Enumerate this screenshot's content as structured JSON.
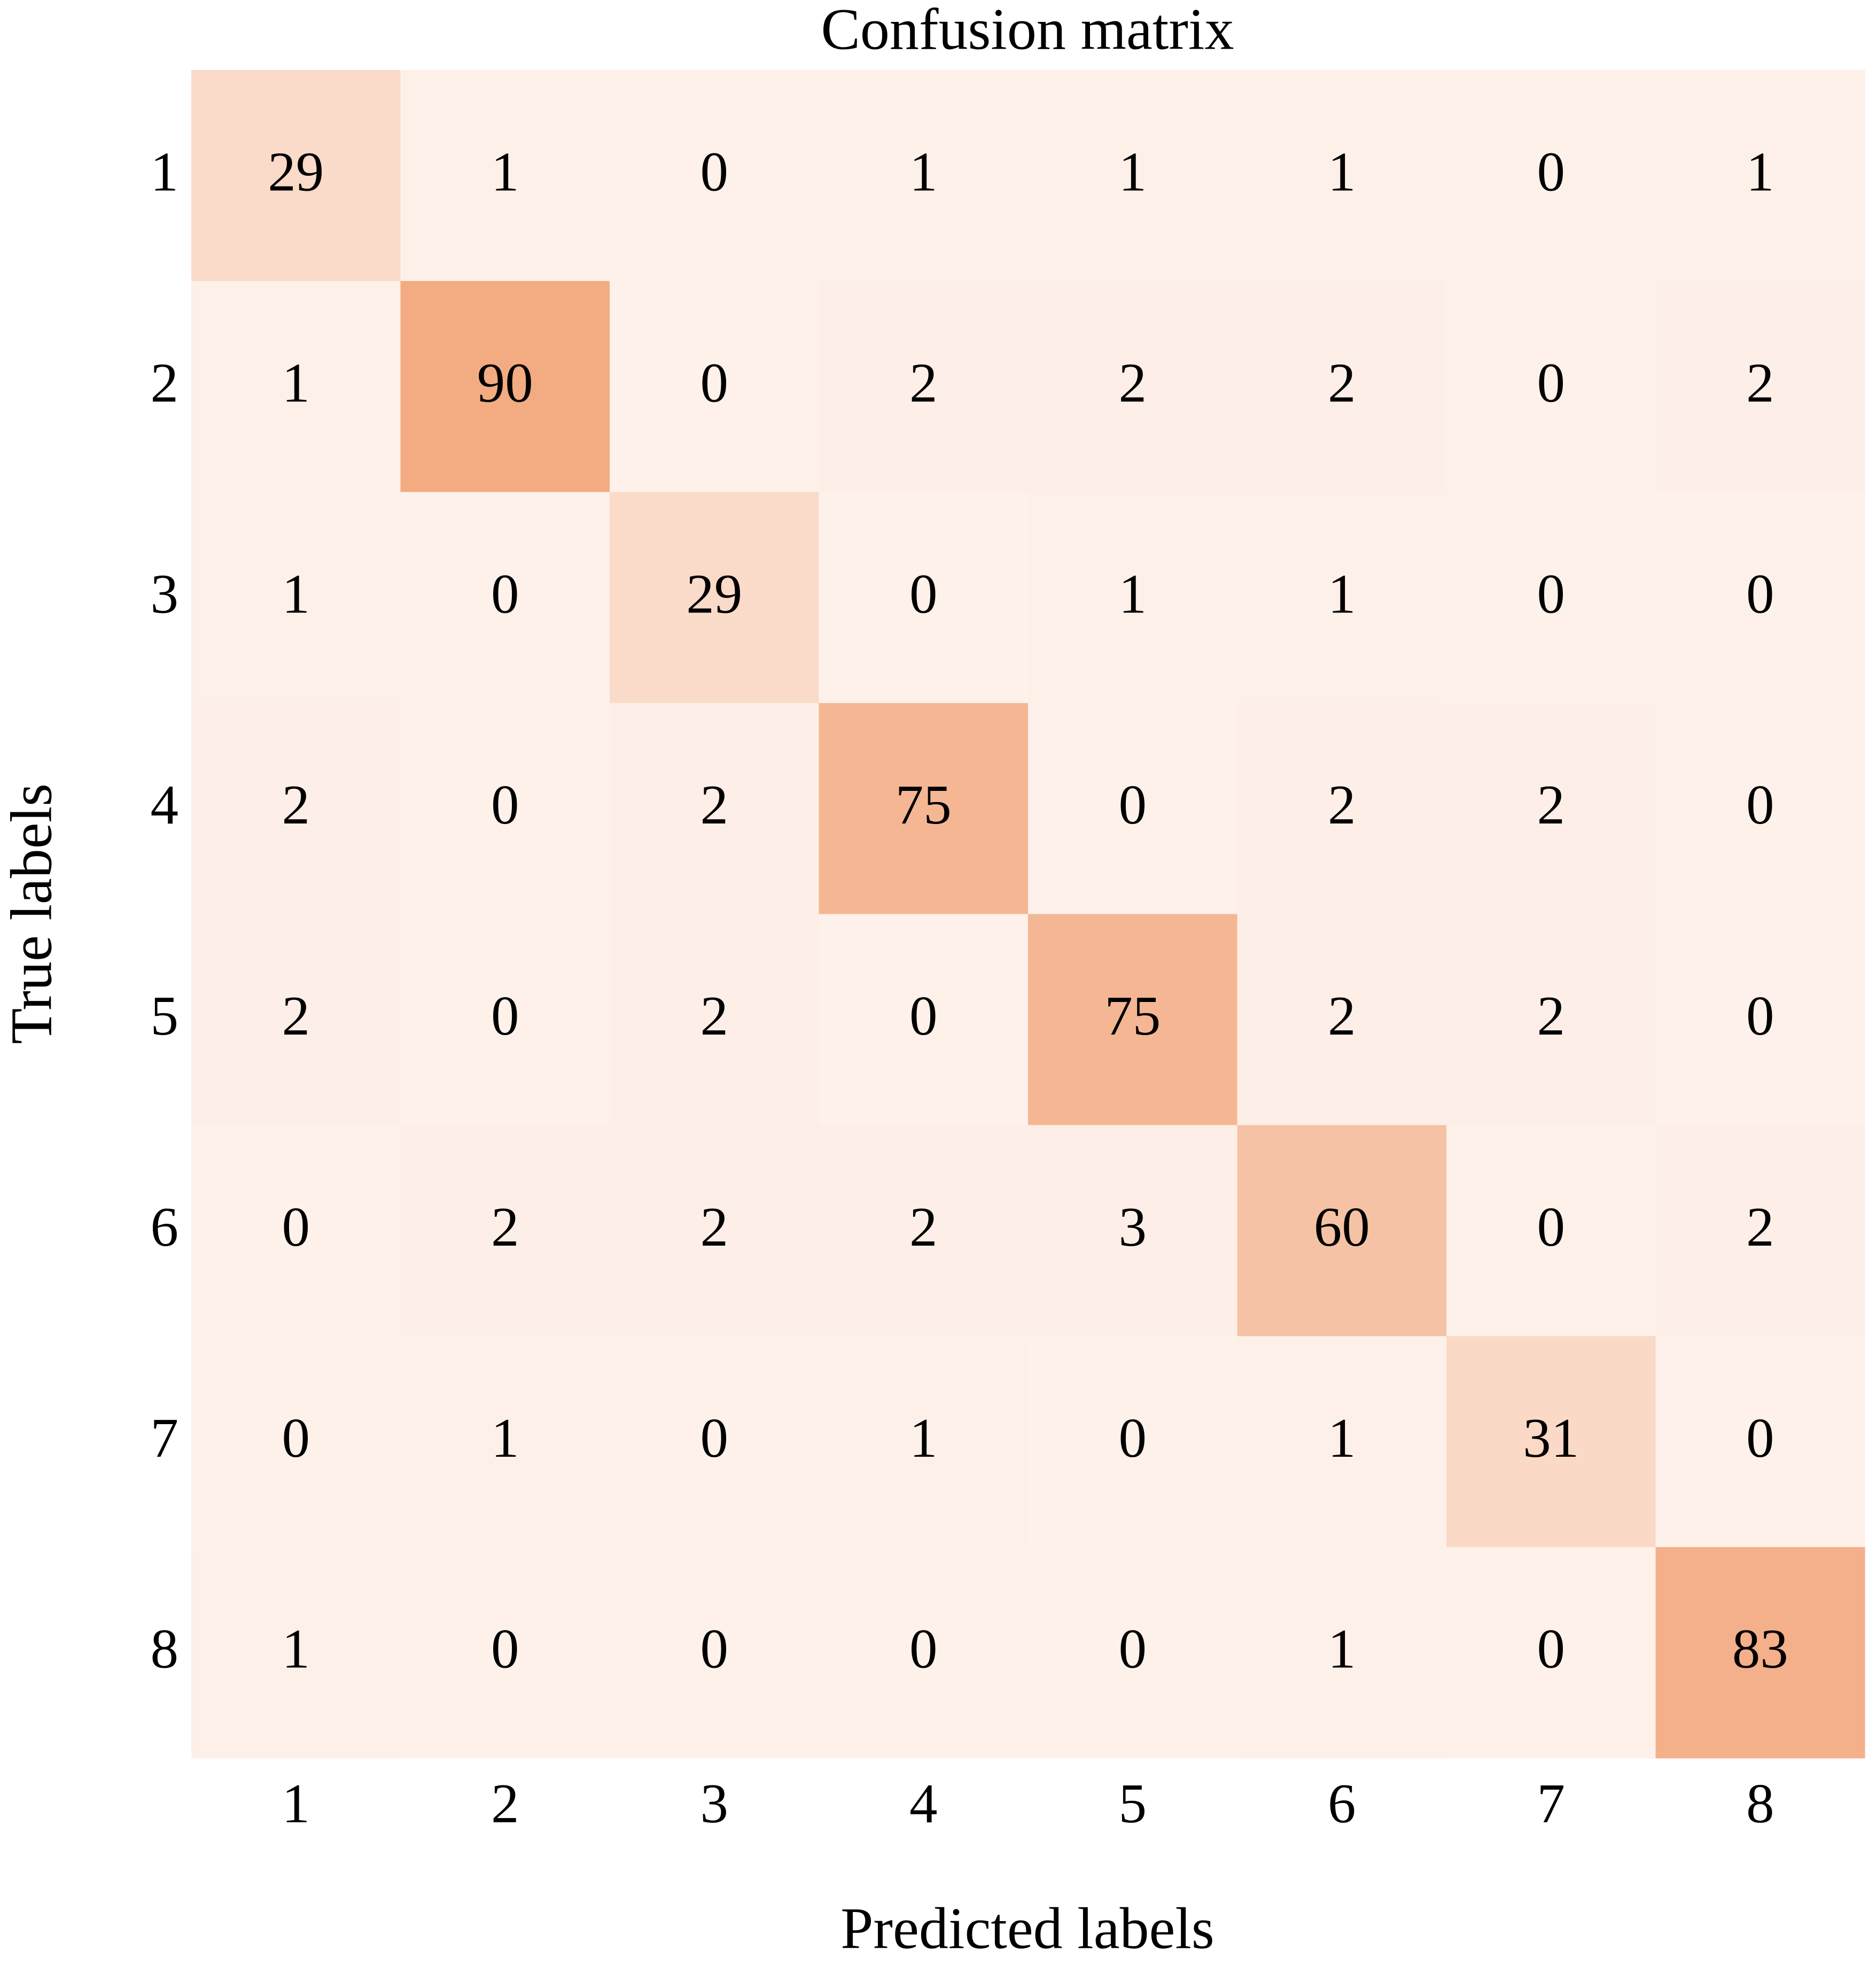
{
  "chart_data": {
    "type": "heatmap",
    "title": "Confusion matrix",
    "x_label": "Predicted labels",
    "y_label": "True labels",
    "categories": [
      "1",
      "2",
      "3",
      "4",
      "5",
      "6",
      "7",
      "8"
    ],
    "y_categories": [
      "1",
      "2",
      "3",
      "4",
      "5",
      "6",
      "7",
      "8"
    ],
    "values": [
      [
        29,
        1,
        0,
        1,
        1,
        1,
        0,
        1
      ],
      [
        1,
        90,
        0,
        2,
        2,
        2,
        0,
        2
      ],
      [
        1,
        0,
        29,
        0,
        1,
        1,
        0,
        0
      ],
      [
        2,
        0,
        2,
        75,
        0,
        2,
        2,
        0
      ],
      [
        2,
        0,
        2,
        0,
        75,
        2,
        2,
        0
      ],
      [
        0,
        2,
        2,
        2,
        3,
        60,
        0,
        2
      ],
      [
        0,
        1,
        0,
        1,
        0,
        1,
        31,
        0
      ],
      [
        1,
        0,
        0,
        0,
        0,
        1,
        0,
        83
      ]
    ],
    "colormap": [
      "#fdf1ea",
      "#f3ab82"
    ]
  }
}
